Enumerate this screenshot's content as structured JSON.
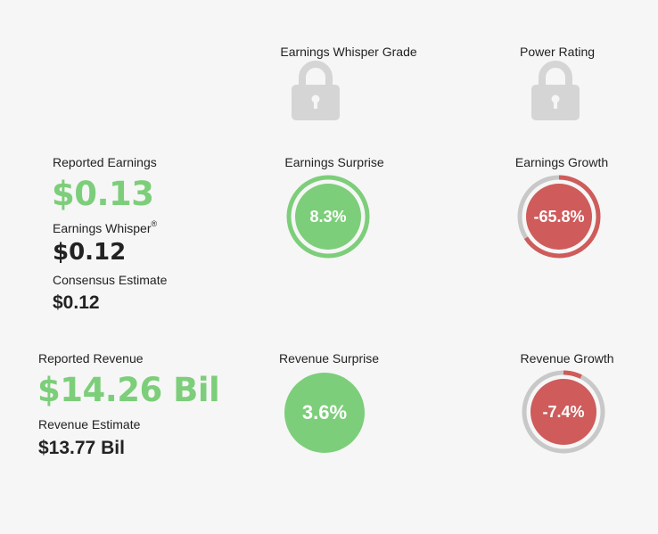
{
  "grades": {
    "whisper_grade_label": "Earnings Whisper Grade",
    "power_rating_label": "Power Rating",
    "lock_icon": "lock-icon"
  },
  "earnings": {
    "reported_label": "Reported Earnings",
    "reported_value": "$0.13",
    "whisper_label": "Earnings Whisper",
    "whisper_reg": "®",
    "whisper_value": "$0.12",
    "consensus_label": "Consensus Estimate",
    "consensus_value": "$0.12",
    "surprise_label": "Earnings Surprise",
    "surprise_value": "8.3%",
    "surprise_ring_fraction": 1.0,
    "growth_label": "Earnings Growth",
    "growth_value": "-65.8%",
    "growth_ring_fraction": 0.658
  },
  "revenue": {
    "reported_label": "Reported Revenue",
    "reported_value": "$14.26 Bil",
    "estimate_label": "Revenue Estimate",
    "estimate_value": "$13.77 Bil",
    "surprise_label": "Revenue Surprise",
    "surprise_value": "3.6%",
    "growth_label": "Revenue Growth",
    "growth_value": "-7.4%",
    "growth_ring_fraction": 0.074
  },
  "colors": {
    "positive": "#7dce7a",
    "negative": "#cf5b5b",
    "ring_track": "#c8c8c8",
    "lock": "#d5d5d5",
    "background": "#f6f6f6"
  }
}
